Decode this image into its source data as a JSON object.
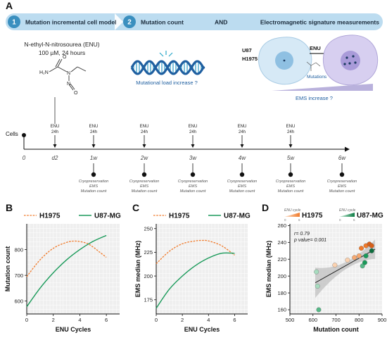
{
  "panels": {
    "A": "A",
    "B": "B",
    "C": "C",
    "D": "D"
  },
  "banner": {
    "step1_num": "1",
    "step1_label": "Mutation incremental cell model",
    "step2_num": "2",
    "step2_label": "Mutation count",
    "and_label": "AND",
    "step2_right": "Electromagnetic signature measurements"
  },
  "enu_info": {
    "name": "N-ethyl-N-nitrosourea (ENU)",
    "dose": "100 µM, 24 hours",
    "atom_n1": "N",
    "atom_n2": "N",
    "atom_o": "O",
    "atom_h2n": "H₂N",
    "atom_o2": "O"
  },
  "dna_caption": "Mutational load increase ?",
  "cells_schematic": {
    "cell_lines": "U87\nH1975",
    "cell_line_1": "U87",
    "cell_line_2": "H1975",
    "enu_arrow_label": "ENU",
    "mutations_label": "Mutations",
    "ems_label": "EMS increase ?"
  },
  "timeline": {
    "start_label": "Cells",
    "time_labels": [
      "0",
      "d2",
      "1w",
      "2w",
      "3w",
      "4w",
      "5w",
      "6w"
    ],
    "enu_labels": [
      "ENU",
      "ENU",
      "ENU",
      "ENU",
      "ENU",
      "ENU"
    ],
    "enu_duration": "24h",
    "sample_lines": [
      "Cryopreservation",
      "EMS",
      "Mutation count"
    ]
  },
  "colors": {
    "H1975": "#f07a2a",
    "U87-MG": "#1a9a5a",
    "banner": "#bcdcf0",
    "step_circle": "#3a8fbf",
    "dna": "#1f5fa0",
    "ems_bar": "#b9b1dc"
  },
  "chart_data": [
    {
      "type": "line",
      "panel": "B",
      "xlabel": "ENU Cycles",
      "ylabel": "Mutation count",
      "xlim": [
        0,
        7
      ],
      "ylim": [
        550,
        900
      ],
      "xticks": [
        0,
        2,
        4,
        6
      ],
      "yticks": [
        600,
        700,
        800
      ],
      "grid": true,
      "legend": "top",
      "series": [
        {
          "name": "H1975",
          "style": "dashed",
          "x": [
            0,
            1,
            2,
            3,
            3.7,
            4.5,
            5,
            5.5,
            6
          ],
          "y": [
            695,
            760,
            805,
            828,
            833,
            825,
            810,
            790,
            770
          ]
        },
        {
          "name": "U87-MG",
          "style": "solid",
          "x": [
            0,
            1,
            2,
            3,
            4,
            5,
            6
          ],
          "y": [
            578,
            650,
            710,
            760,
            800,
            832,
            855
          ]
        }
      ]
    },
    {
      "type": "line",
      "panel": "C",
      "xlabel": "ENU Cycles",
      "ylabel": "EMS median (MHz)",
      "xlim": [
        0,
        7
      ],
      "ylim": [
        160,
        255
      ],
      "xticks": [
        0,
        2,
        4,
        6
      ],
      "yticks": [
        175,
        200,
        225,
        250
      ],
      "grid": true,
      "legend": "top",
      "series": [
        {
          "name": "H1975",
          "style": "dashed",
          "x": [
            0,
            1,
            2,
            3,
            3.5,
            4,
            5,
            6
          ],
          "y": [
            213,
            226,
            234,
            237,
            237.5,
            237,
            232,
            222
          ]
        },
        {
          "name": "U87-MG",
          "style": "solid",
          "x": [
            0,
            1,
            2,
            3,
            4,
            5,
            6
          ],
          "y": [
            166,
            186,
            200,
            211,
            219,
            224,
            224
          ]
        }
      ]
    },
    {
      "type": "scatter",
      "panel": "D",
      "xlabel": "Mutation count",
      "ylabel": "EMS median (MHz)",
      "xlim": [
        500,
        900
      ],
      "ylim": [
        155,
        262
      ],
      "xticks": [
        500,
        600,
        700,
        800,
        900
      ],
      "yticks": [
        160,
        180,
        200,
        220,
        240,
        260
      ],
      "grid": true,
      "legend": "top",
      "legend_cycle_label": "ENU cycle",
      "legend_cycle_min": "0",
      "legend_cycle_max": "6",
      "annotation_r": "r= 0.79",
      "annotation_p": "p value= 0.001",
      "regression": {
        "x": [
          610,
          870
        ],
        "y": [
          192,
          232
        ]
      },
      "series": [
        {
          "name": "H1975",
          "x": [
            695,
            750,
            780,
            800,
            810,
            830,
            845,
            855
          ],
          "y": [
            213,
            219,
            222,
            224,
            233,
            236,
            238,
            236
          ]
        },
        {
          "name": "U87-MG",
          "x": [
            615,
            620,
            625,
            815,
            825,
            830,
            855
          ],
          "y": [
            205,
            188,
            160,
            212,
            216,
            224,
            230
          ]
        }
      ]
    }
  ]
}
